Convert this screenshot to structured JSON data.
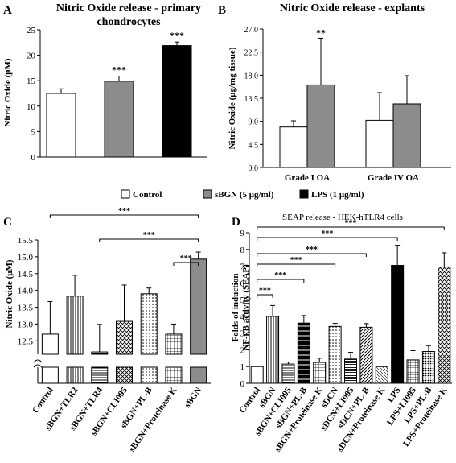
{
  "shared_legend": {
    "items": [
      {
        "label": "Control",
        "fill": "#ffffff"
      },
      {
        "label": "sBGN (5 μg/ml)",
        "fill": "#8c8c8c"
      },
      {
        "label": "LPS (1 μg/ml)",
        "fill": "#000000"
      }
    ]
  },
  "chart_data": [
    {
      "panel_letter": "A",
      "type": "bar",
      "title": "Nitric Oxide release - primary chondrocytes",
      "title_lines": [
        "Nitric Oxide release - primary",
        "chondrocytes"
      ],
      "ylabel": "Nitric Oxide (μM)",
      "ylim": [
        0,
        25
      ],
      "yticks": [
        "0",
        "5",
        "10",
        "15",
        "20",
        "25"
      ],
      "categories": [
        "Control",
        "sBGN (5 μg/ml)",
        "LPS (1 μg/ml)"
      ],
      "values": [
        12.5,
        14.9,
        21.9
      ],
      "errors": [
        0.9,
        1.0,
        0.7
      ],
      "annotations": [
        "",
        "***",
        "***"
      ],
      "fills": [
        "#ffffff",
        "#8c8c8c",
        "#000000"
      ]
    },
    {
      "panel_letter": "B",
      "type": "bar",
      "title": "Nitric Oxide release - explants",
      "ylabel": "Nitric Oxide (μg/mg tissue)",
      "ylim": [
        0,
        27
      ],
      "yticks": [
        "0.0",
        "4.5",
        "9.0",
        "13.5",
        "18.0",
        "22.5",
        "27.0"
      ],
      "categories": [
        "Grade I OA",
        "Grade IV OA"
      ],
      "series": [
        {
          "values": [
            7.9,
            9.2
          ],
          "errors": [
            1.2,
            5.4
          ],
          "fill": "#ffffff"
        },
        {
          "values": [
            16.1,
            12.4
          ],
          "errors": [
            9.1,
            5.5
          ],
          "fill": "#8c8c8c"
        }
      ],
      "annotations": [
        [
          "",
          "**"
        ],
        [
          "",
          ""
        ]
      ]
    },
    {
      "panel_letter": "C",
      "type": "bar",
      "ylabel": "Nitric Oxide (μM)",
      "ylim": [
        12.1,
        15.5
      ],
      "broken_axis": true,
      "yticks": [
        "12.5",
        "13.0",
        "13.5",
        "14.0",
        "14.5",
        "15.0",
        "15.5"
      ],
      "categories": [
        "Control",
        "sBGN+TLR2",
        "sBGN+TLR4",
        "sBGN+CLI095",
        "sBGN+PL-B",
        "sBGN+Proteinase K",
        "sBGN"
      ],
      "values": [
        12.7,
        13.83,
        12.17,
        13.08,
        13.9,
        12.7,
        14.93
      ],
      "errors": [
        0.97,
        0.62,
        0.82,
        1.08,
        0.17,
        0.3,
        0.21
      ],
      "patterns": [
        "white",
        "vlines",
        "hlines",
        "cross",
        "dots",
        "grid",
        "gray"
      ],
      "brackets": [
        {
          "from": "Control",
          "to": "sBGN",
          "label": "***"
        },
        {
          "from": "sBGN+TLR4",
          "to": "sBGN",
          "label": "***"
        },
        {
          "from": "sBGN+Proteinase K",
          "to": "sBGN",
          "label": "***"
        }
      ]
    },
    {
      "panel_letter": "D",
      "type": "bar",
      "title": "SEAP release - HEK-hTLR4 cells",
      "ylabel_lines": [
        "Folds of induction",
        "NF-κB activity (SEAP)"
      ],
      "ylim": [
        0,
        9
      ],
      "yticks": [
        "0",
        "1",
        "2",
        "3",
        "4",
        "5",
        "6",
        "7",
        "8",
        "9"
      ],
      "categories": [
        "Control",
        "sBGN",
        "sBGN+CLI095",
        "sBGN+PL-B",
        "sBGN+Proteinase K",
        "sDCN",
        "sDCN+LI095",
        "sDCN+PL-B",
        "sDCN+Proteinase K",
        "LPS",
        "LPS+LI095",
        "LPS+PL-B",
        "LPS+Proteinase K"
      ],
      "values": [
        1.0,
        4.0,
        1.15,
        3.6,
        1.25,
        3.4,
        1.45,
        3.35,
        1.0,
        7.05,
        1.4,
        1.9,
        6.95
      ],
      "errors": [
        0,
        0.65,
        0.12,
        0.45,
        0.25,
        0.18,
        0.4,
        0.22,
        0,
        1.2,
        0.55,
        0.35,
        0.85
      ],
      "patterns": [
        "white",
        "vlines",
        "hlines",
        "black-hlines",
        "grid",
        "dots",
        "hlines-dense",
        "diag",
        "diag-light",
        "black",
        "grid-dense",
        "dots-dense",
        "cross"
      ],
      "brackets": [
        {
          "from": "Control",
          "to": "sBGN",
          "label": "***"
        },
        {
          "from": "Control",
          "to": "sBGN+PL-B",
          "label": "***"
        },
        {
          "from": "Control",
          "to": "sDCN",
          "label": "***"
        },
        {
          "from": "Control",
          "to": "sDCN+PL-B",
          "label": "***"
        },
        {
          "from": "Control",
          "to": "LPS",
          "label": "***"
        },
        {
          "from": "Control",
          "to": "LPS+Proteinase K",
          "label": "***"
        }
      ]
    }
  ]
}
